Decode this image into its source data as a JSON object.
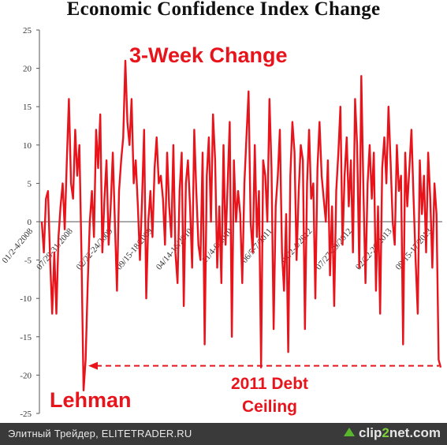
{
  "title": "Economic Confidence Index Change",
  "chart_data": {
    "type": "line",
    "title": "Economic Confidence Index Change",
    "xlabel": "",
    "ylabel": "",
    "ylim": [
      -25,
      25
    ],
    "yticks": [
      25,
      20,
      15,
      10,
      5,
      0,
      -5,
      -10,
      -15,
      -20,
      -25
    ],
    "grid": false,
    "legend": "none",
    "x_tick_labels": [
      "01/2-4/2008",
      "07/29-31/2008",
      "02/22-24/2009",
      "09/15-18/2009",
      "04/14-16/2010",
      "11/4-6/2010",
      "06/5-7/2011",
      "01/2-4/2012",
      "07/27-29/2012",
      "02/22-26/2013",
      "09/15-17/2013"
    ],
    "series": [
      {
        "color": "#e8141c",
        "values": [
          0,
          -4,
          3,
          4,
          -5,
          -12,
          -4,
          -12,
          -2,
          2,
          5,
          -1,
          8,
          16,
          5,
          3,
          12,
          6,
          10,
          -4,
          -22,
          -18,
          -8,
          0,
          4,
          -2,
          12,
          7,
          14,
          -4,
          3,
          8,
          -3,
          2,
          9,
          0,
          -9,
          4,
          8,
          11,
          21,
          13,
          10,
          16,
          5,
          8,
          2,
          -5,
          3,
          12,
          -10,
          0,
          4,
          -2,
          7,
          11,
          5,
          6,
          3,
          -3,
          9,
          2,
          -2,
          10,
          -4,
          -8,
          4,
          9,
          -11,
          5,
          8,
          2,
          -6,
          12,
          4,
          -3,
          -5,
          9,
          -16,
          6,
          11,
          0,
          14,
          8,
          -6,
          2,
          -8,
          10,
          -3,
          5,
          13,
          -15,
          8,
          0,
          4,
          1,
          -8,
          5,
          11,
          17,
          0,
          -4,
          10,
          -2,
          4,
          -19,
          8,
          6,
          0,
          16,
          7,
          -14,
          2,
          6,
          12,
          -4,
          -9,
          1,
          -17,
          6,
          13,
          9,
          -5,
          4,
          10,
          8,
          -14,
          5,
          12,
          3,
          5,
          -10,
          7,
          13,
          6,
          3,
          0,
          8,
          -7,
          2,
          -11,
          4,
          9,
          15,
          -3,
          6,
          11,
          2,
          8,
          -4,
          16,
          10,
          -6,
          19,
          4,
          -8,
          5,
          10,
          3,
          9,
          -9,
          2,
          -12,
          7,
          11,
          5,
          15,
          8,
          0,
          -3,
          10,
          4,
          6,
          -16,
          9,
          2,
          7,
          12,
          3,
          -5,
          -12,
          8,
          1,
          6,
          -4,
          9,
          3,
          -6,
          5,
          1,
          -18,
          -19
        ]
      }
    ],
    "annotations": [
      {
        "text": "3-Week Change"
      },
      {
        "text": "Lehman"
      },
      {
        "text": "2011 Debt Ceiling"
      }
    ]
  },
  "footer": {
    "credit": "Элитный Трейдер, ELITETRADER.RU",
    "logo_main": "clip",
    "logo_two": "2",
    "logo_rest": "net",
    "logo_suffix": ".com"
  }
}
